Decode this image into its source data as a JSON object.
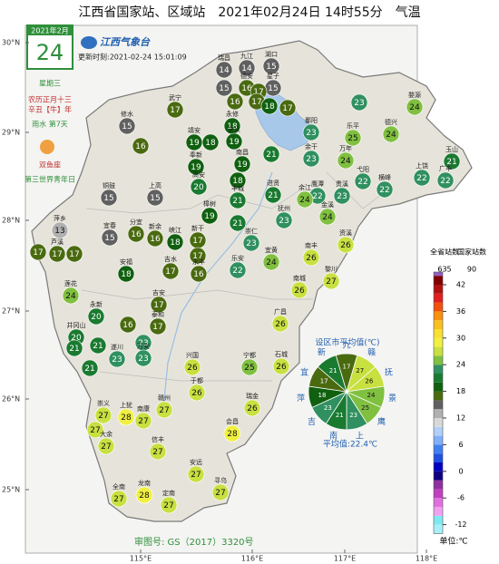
{
  "title": "江西省国家站、区域站　2021年02月24日 14时55分　气温",
  "calendar": {
    "month": "2021年2月",
    "day": "24",
    "weekday": "星期三",
    "lunar": "农历正月十三",
    "year": "辛丑【牛】年",
    "term": "雨水 第7天",
    "zodiac": "双鱼座",
    "festival": "第三世界青年日"
  },
  "logo": "江西气象台",
  "update_time": "更新时刻:2021-02-24 15:01:09",
  "lat_labels": [
    "30°N",
    "29°N",
    "28°N",
    "27°N",
    "26°N",
    "25°N"
  ],
  "lon_labels": [
    "115°E",
    "116°E",
    "117°E",
    "118°E"
  ],
  "stations": [
    {
      "name": "瑞昌",
      "value": 14
    },
    {
      "name": "九江",
      "value": 14
    },
    {
      "name": "湖口",
      "value": 15
    },
    {
      "name": null,
      "value": 15
    },
    {
      "name": "德安",
      "value": 16
    },
    {
      "name": "星子",
      "value": 15
    },
    {
      "name": null,
      "value": 17
    },
    {
      "name": null,
      "value": 16
    },
    {
      "name": null,
      "value": 17
    },
    {
      "name": "武宁",
      "value": 17
    },
    {
      "name": "永修",
      "value": 18
    },
    {
      "name": null,
      "value": 18
    },
    {
      "name": null,
      "value": 17
    },
    {
      "name": null,
      "value": 23
    },
    {
      "name": "婺源",
      "value": 24
    },
    {
      "name": "修水",
      "value": 15
    },
    {
      "name": "靖安",
      "value": 19
    },
    {
      "name": null,
      "value": 18
    },
    {
      "name": "安义",
      "value": 19
    },
    {
      "name": "鄱阳",
      "value": 23
    },
    {
      "name": "乐平",
      "value": 25
    },
    {
      "name": "德兴",
      "value": 24
    },
    {
      "name": null,
      "value": 16
    },
    {
      "name": "余干",
      "value": 23
    },
    {
      "name": "万年",
      "value": 24
    },
    {
      "name": null,
      "value": 21
    },
    {
      "name": "南昌",
      "value": 19
    },
    {
      "name": "奉新",
      "value": 19
    },
    {
      "name": "高安",
      "value": 20
    },
    {
      "name": null,
      "value": 18
    },
    {
      "name": "玉山",
      "value": 21
    },
    {
      "name": "上饶",
      "value": 22
    },
    {
      "name": "广丰",
      "value": 22
    },
    {
      "name": "横峰",
      "value": 22
    },
    {
      "name": "弋阳",
      "value": 22
    },
    {
      "name": "贵溪",
      "value": 23
    },
    {
      "name": "鹰潭",
      "value": 22
    },
    {
      "name": "余江",
      "value": 24
    },
    {
      "name": "丰城",
      "value": 21
    },
    {
      "name": "铜鼓",
      "value": 15
    },
    {
      "name": "上高",
      "value": 15
    },
    {
      "name": "进贤",
      "value": 21
    },
    {
      "name": "樟树",
      "value": 19
    },
    {
      "name": null,
      "value": 21
    },
    {
      "name": "抚州",
      "value": 23
    },
    {
      "name": "金溪",
      "value": 24
    },
    {
      "name": "萍乡",
      "value": 13
    },
    {
      "name": "宜春",
      "value": 15
    },
    {
      "name": "分宜",
      "value": 16
    },
    {
      "name": "新余",
      "value": 16
    },
    {
      "name": "新干",
      "value": 17
    },
    {
      "name": "峡江",
      "value": 18
    },
    {
      "name": null,
      "value": 17
    },
    {
      "name": "芦溪",
      "value": 17
    },
    {
      "name": null,
      "value": 17
    },
    {
      "name": null,
      "value": 17
    },
    {
      "name": "崇仁",
      "value": 23
    },
    {
      "name": "资溪",
      "value": 26
    },
    {
      "name": "安福",
      "value": 18
    },
    {
      "name": "吉水",
      "value": 17
    },
    {
      "name": "永丰",
      "value": 16
    },
    {
      "name": "宜黄",
      "value": 24
    },
    {
      "name": "南丰",
      "value": 26
    },
    {
      "name": "乐安",
      "value": 22
    },
    {
      "name": "莲花",
      "value": 24
    },
    {
      "name": "黎川",
      "value": 27
    },
    {
      "name": "南城",
      "value": 26
    },
    {
      "name": "吉安",
      "value": 17
    },
    {
      "name": "永新",
      "value": 20
    },
    {
      "name": null,
      "value": 16
    },
    {
      "name": "泰和",
      "value": 17
    },
    {
      "name": null,
      "value": 23
    },
    {
      "name": "广昌",
      "value": 26
    },
    {
      "name": "井冈山",
      "value": 20
    },
    {
      "name": null,
      "value": 21
    },
    {
      "name": null,
      "value": 21
    },
    {
      "name": "遂川",
      "value": 23
    },
    {
      "name": "万安",
      "value": 23
    },
    {
      "name": null,
      "value": 21
    },
    {
      "name": "兴国",
      "value": 26
    },
    {
      "name": "石城",
      "value": 26
    },
    {
      "name": "宁都",
      "value": 25
    },
    {
      "name": "于都",
      "value": 26
    },
    {
      "name": "崇义",
      "value": 27
    },
    {
      "name": "上犹",
      "value": 28
    },
    {
      "name": "南康",
      "value": 27
    },
    {
      "name": "赣州",
      "value": 27
    },
    {
      "name": "瑞金",
      "value": 26
    },
    {
      "name": null,
      "value": 27
    },
    {
      "name": "大余",
      "value": 27
    },
    {
      "name": "信丰",
      "value": 27
    },
    {
      "name": "会昌",
      "value": 28
    },
    {
      "name": "安远",
      "value": 27
    },
    {
      "name": "寻乌",
      "value": 27
    },
    {
      "name": "全南",
      "value": 27
    },
    {
      "name": "龙南",
      "value": 28
    },
    {
      "name": "定南",
      "value": 27
    }
  ],
  "city_averages": {
    "title": "设区市平均值(℃)",
    "categories": [
      "九",
      "赣",
      "抚",
      "景",
      "鹰",
      "上",
      "南",
      "吉",
      "萍",
      "宜",
      "新"
    ],
    "values": [
      17,
      27,
      26,
      24,
      25,
      23,
      21,
      23,
      18,
      17,
      21
    ],
    "mean_label": "平均值:22.4℃"
  },
  "station_counts": {
    "province_label": "全省站数",
    "province": "635",
    "national_label": "国家站数",
    "national": "90"
  },
  "colorbar": {
    "lim": [
      -14,
      44
    ],
    "ticks": [
      42,
      36,
      30,
      24,
      18,
      12,
      6,
      0,
      -6,
      -12
    ],
    "colors": [
      "#a8f0f8",
      "#80e8f0",
      "#f0a0f0",
      "#e070e0",
      "#c040c0",
      "#9030a0",
      "#100080",
      "#0000c0",
      "#2050e0",
      "#4080f0",
      "#80b0f8",
      "#b0d0f8",
      "#d8d8d8",
      "#b0b0b0",
      "#606060",
      "#4a6a10",
      "#106010",
      "#1a7a30",
      "#309060",
      "#80c040",
      "#c8e040",
      "#f0f040",
      "#f8e030",
      "#f8c020",
      "#f89010",
      "#f05010",
      "#e02020",
      "#b01010",
      "#800000"
    ],
    "top_color": "#9060c0",
    "unit": "单位:℃"
  },
  "approval": "审图号: GS（2017）3320号"
}
